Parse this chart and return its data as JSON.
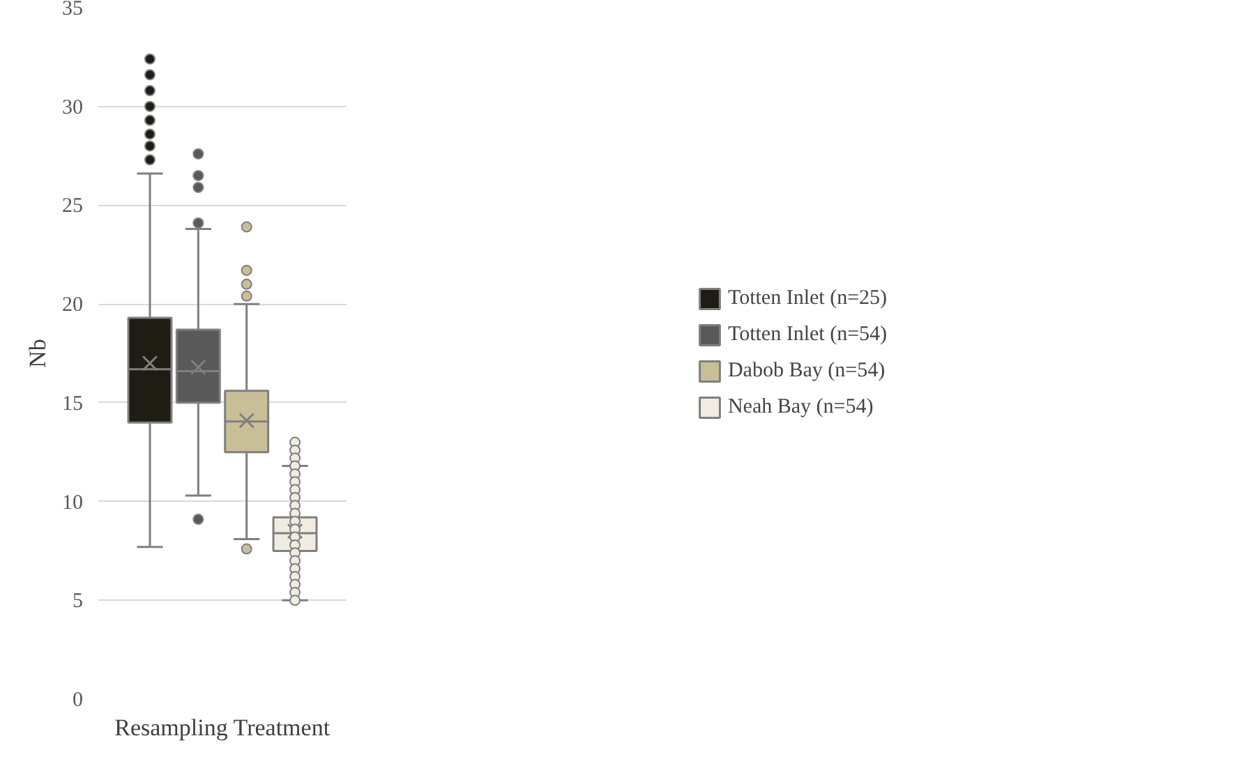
{
  "chart_data": {
    "type": "box",
    "xlabel": "Resampling Treatment",
    "ylabel": "Nb",
    "categories": [
      null
    ],
    "ylim": [
      0,
      35
    ],
    "yticks": [
      0,
      5,
      10,
      15,
      20,
      25,
      30,
      35
    ],
    "grid": "y",
    "legend": "right",
    "series": [
      {
        "name": "Totten Inlet (n=25)",
        "color": "#1f1c14",
        "boxes": [
          {
            "low": 7.7,
            "q1": 14.0,
            "median": 16.7,
            "q3": 19.3,
            "high": 26.6,
            "mean": 17.0,
            "outliers": [
              32.4,
              31.6,
              30.8,
              30.0,
              29.3,
              28.6,
              28.0,
              27.3
            ]
          }
        ]
      },
      {
        "name": "Totten Inlet (n=54)",
        "color": "#595959",
        "boxes": [
          {
            "low": 10.3,
            "q1": 15.0,
            "median": 16.6,
            "q3": 18.7,
            "high": 23.8,
            "mean": 16.8,
            "outliers": [
              27.6,
              26.5,
              25.9,
              24.1,
              9.1
            ]
          }
        ]
      },
      {
        "name": "Dabob Bay (n=54)",
        "color": "#c8bf98",
        "boxes": [
          {
            "low": 8.1,
            "q1": 12.5,
            "median": 14.05,
            "q3": 15.6,
            "high": 20.0,
            "mean": 14.1,
            "outliers": [
              23.9,
              21.7,
              21.0,
              20.4,
              7.6
            ]
          }
        ]
      },
      {
        "name": "Neah Bay (n=54)",
        "color": "#f0ece0",
        "boxes": [
          {
            "low": 5.0,
            "q1": 7.5,
            "median": 8.4,
            "q3": 9.2,
            "high": 11.8,
            "mean": 8.5,
            "outliers": [
              13.0,
              12.6,
              12.2,
              11.8,
              11.4,
              11.0,
              10.6,
              10.2,
              9.8,
              9.4,
              9.0,
              8.6,
              8.2,
              7.8,
              7.4,
              7.0,
              6.6,
              6.2,
              5.8,
              5.4,
              5.0
            ]
          }
        ]
      }
    ]
  }
}
